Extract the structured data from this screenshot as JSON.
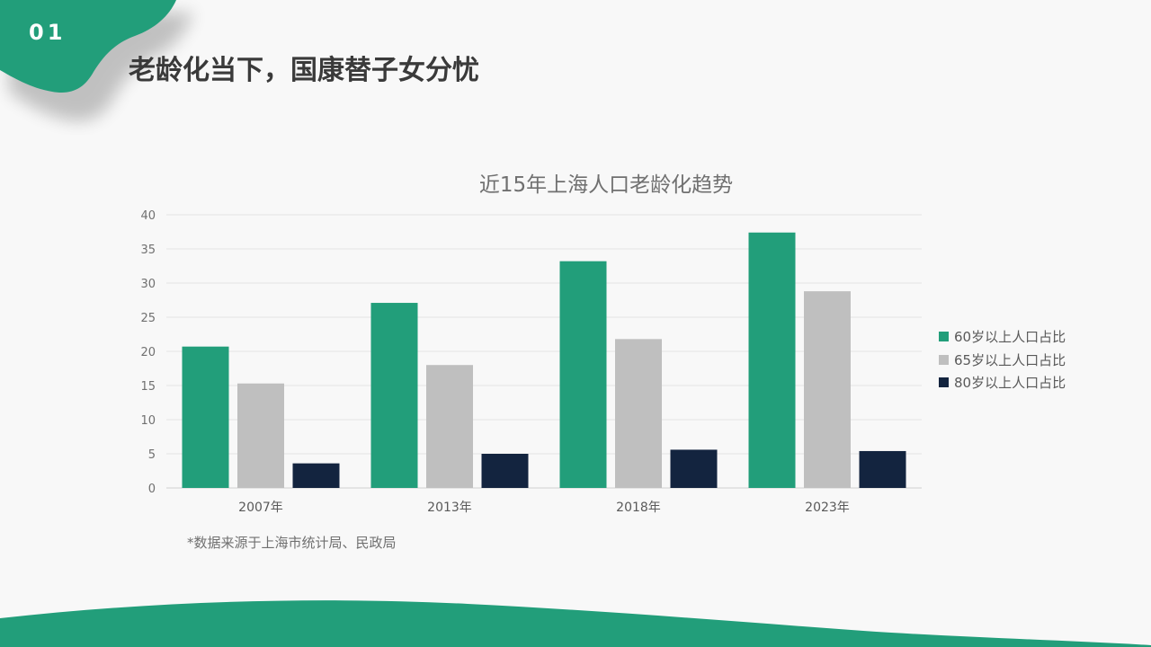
{
  "slide": {
    "section_number": "01",
    "title": "老龄化当下，国康替子女分忧",
    "source_note": "*数据来源于上海市统计局、民政局",
    "colors": {
      "accent": "#229e7a",
      "background": "#f8f8f8",
      "title_text": "#3a3a3a"
    }
  },
  "chart_data": {
    "type": "bar",
    "title": "近15年上海人口老龄化趋势",
    "xlabel": "",
    "ylabel": "",
    "categories": [
      "2007年",
      "2013年",
      "2018年",
      "2023年"
    ],
    "ylim": [
      0,
      40
    ],
    "yticks": [
      0,
      5,
      10,
      15,
      20,
      25,
      30,
      35,
      40
    ],
    "grid": true,
    "legend_position": "right",
    "series": [
      {
        "name": "60岁以上人口占比",
        "color": "#229e7a",
        "values": [
          20.7,
          27.1,
          33.2,
          37.4
        ]
      },
      {
        "name": "65岁以上人口占比",
        "color": "#bfbfbf",
        "values": [
          15.3,
          18.0,
          21.8,
          28.8
        ]
      },
      {
        "name": "80岁以上人口占比",
        "color": "#13243f",
        "values": [
          3.6,
          5.0,
          5.6,
          5.4
        ]
      }
    ]
  }
}
